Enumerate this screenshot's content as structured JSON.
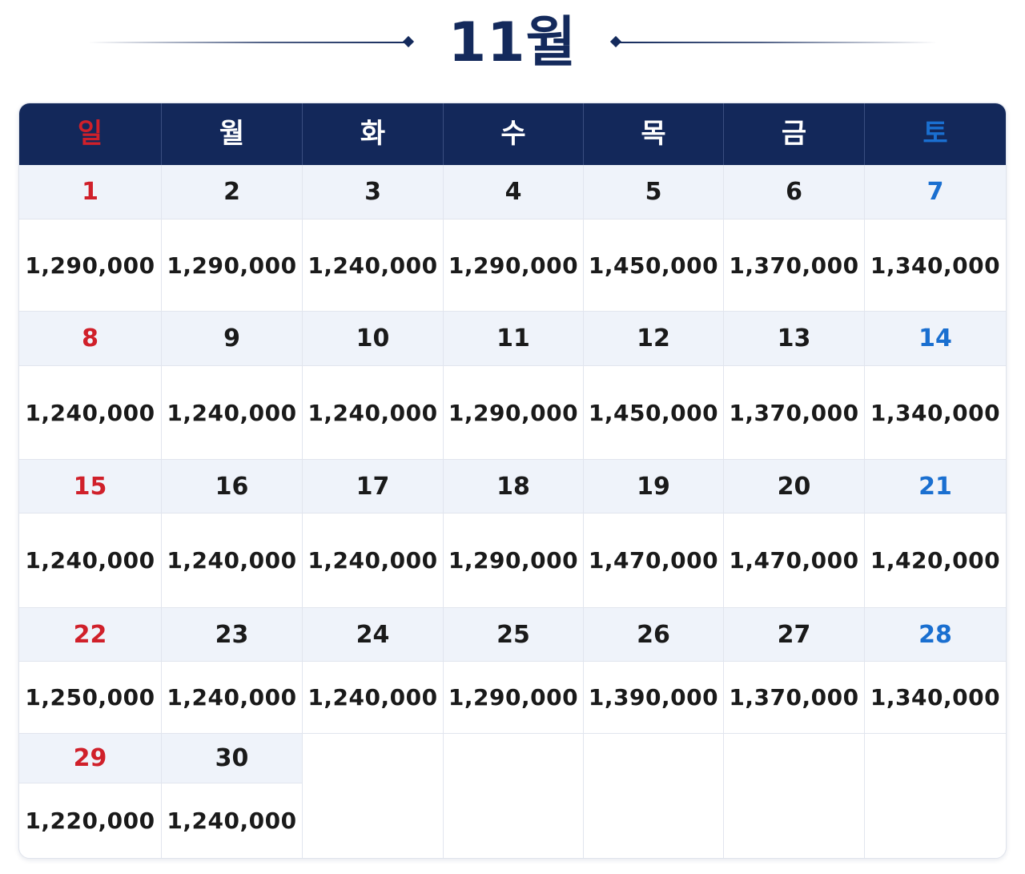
{
  "title": "11월",
  "colors": {
    "navy": "#13285a",
    "sunday": "#d0202a",
    "saturday": "#1a6fd0",
    "day_strip": "#eff3fa"
  },
  "weekdays": [
    "일",
    "월",
    "화",
    "수",
    "목",
    "금",
    "토"
  ],
  "weeks": [
    [
      {
        "day": "1",
        "price": "1,290,000"
      },
      {
        "day": "2",
        "price": "1,290,000"
      },
      {
        "day": "3",
        "price": "1,240,000"
      },
      {
        "day": "4",
        "price": "1,290,000"
      },
      {
        "day": "5",
        "price": "1,450,000"
      },
      {
        "day": "6",
        "price": "1,370,000"
      },
      {
        "day": "7",
        "price": "1,340,000"
      }
    ],
    [
      {
        "day": "8",
        "price": "1,240,000"
      },
      {
        "day": "9",
        "price": "1,240,000"
      },
      {
        "day": "10",
        "price": "1,240,000"
      },
      {
        "day": "11",
        "price": "1,290,000"
      },
      {
        "day": "12",
        "price": "1,450,000"
      },
      {
        "day": "13",
        "price": "1,370,000"
      },
      {
        "day": "14",
        "price": "1,340,000"
      }
    ],
    [
      {
        "day": "15",
        "price": "1,240,000"
      },
      {
        "day": "16",
        "price": "1,240,000"
      },
      {
        "day": "17",
        "price": "1,240,000"
      },
      {
        "day": "18",
        "price": "1,290,000"
      },
      {
        "day": "19",
        "price": "1,470,000"
      },
      {
        "day": "20",
        "price": "1,470,000"
      },
      {
        "day": "21",
        "price": "1,420,000"
      }
    ],
    [
      {
        "day": "22",
        "price": "1,250,000"
      },
      {
        "day": "23",
        "price": "1,240,000"
      },
      {
        "day": "24",
        "price": "1,240,000"
      },
      {
        "day": "25",
        "price": "1,290,000"
      },
      {
        "day": "26",
        "price": "1,390,000"
      },
      {
        "day": "27",
        "price": "1,370,000"
      },
      {
        "day": "28",
        "price": "1,340,000"
      }
    ],
    [
      {
        "day": "29",
        "price": "1,220,000"
      },
      {
        "day": "30",
        "price": "1,240,000"
      }
    ]
  ]
}
